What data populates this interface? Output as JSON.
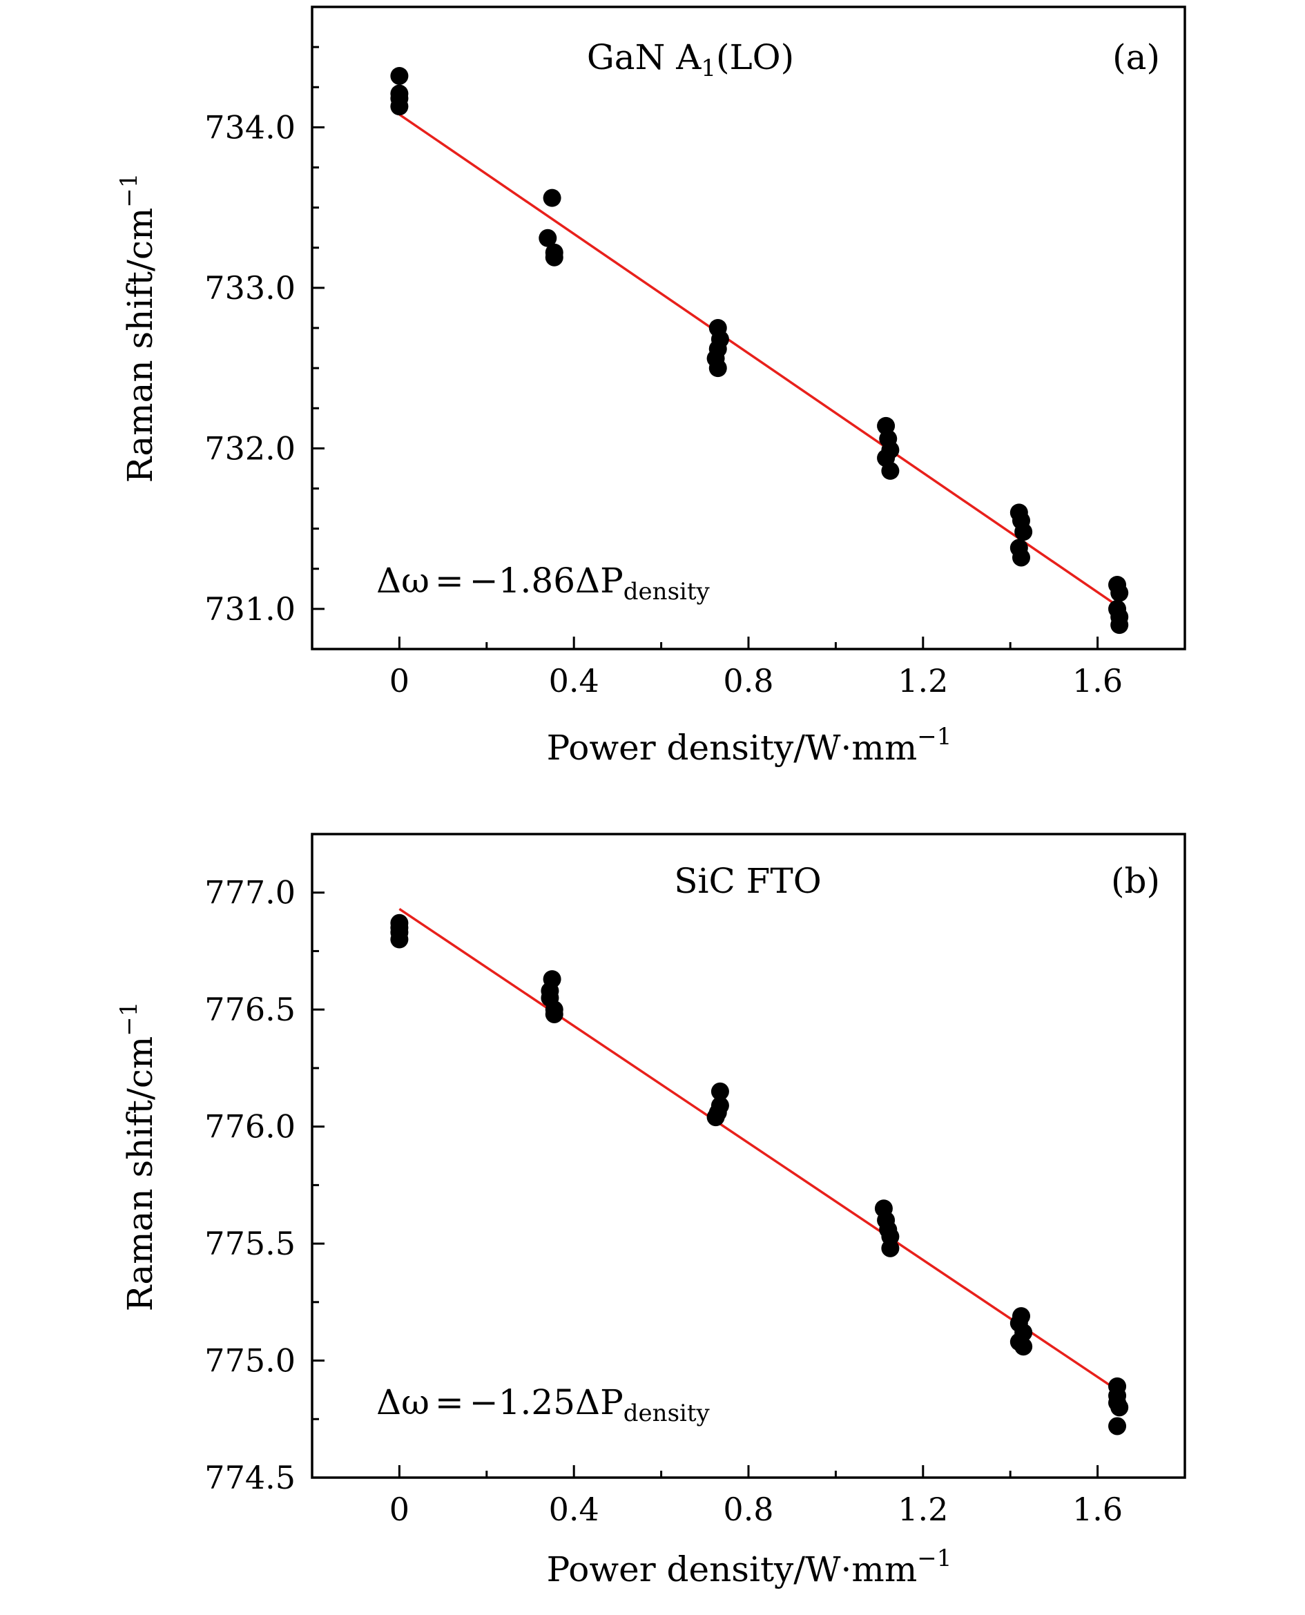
{
  "chart_data": [
    {
      "type": "scatter",
      "panel_tag": "(a)",
      "title": {
        "main": "GaN A",
        "sub": "1",
        "tail": "(LO)"
      },
      "xlabel": {
        "main": "Power density/W·mm",
        "sup": "−1"
      },
      "ylabel": {
        "main": "Raman shift/cm",
        "sup": "−1"
      },
      "xlim": [
        -0.2,
        1.8
      ],
      "ylim": [
        730.75,
        734.75
      ],
      "x_ticks": [
        {
          "value": 0,
          "label": "0"
        },
        {
          "value": 0.4,
          "label": "0.4"
        },
        {
          "value": 0.8,
          "label": "0.8"
        },
        {
          "value": 1.2,
          "label": "1.2"
        },
        {
          "value": 1.6,
          "label": "1.6"
        }
      ],
      "x_minor_ticks": [
        -0.2,
        0.2,
        0.6,
        1.0,
        1.4,
        1.8
      ],
      "y_ticks": [
        {
          "value": 731.0,
          "label": "731.0"
        },
        {
          "value": 732.0,
          "label": "732.0"
        },
        {
          "value": 733.0,
          "label": "733.0"
        },
        {
          "value": 734.0,
          "label": "734.0"
        }
      ],
      "y_minor_ticks": [
        731.25,
        731.5,
        731.75,
        732.25,
        732.5,
        732.75,
        733.25,
        733.5,
        733.75,
        734.25,
        734.5
      ],
      "points": [
        {
          "x": 0.0,
          "y": 734.32
        },
        {
          "x": 0.0,
          "y": 734.21
        },
        {
          "x": 0.0,
          "y": 734.18
        },
        {
          "x": 0.0,
          "y": 734.13
        },
        {
          "x": 0.35,
          "y": 733.56
        },
        {
          "x": 0.34,
          "y": 733.31
        },
        {
          "x": 0.355,
          "y": 733.22
        },
        {
          "x": 0.355,
          "y": 733.19
        },
        {
          "x": 0.73,
          "y": 732.75
        },
        {
          "x": 0.735,
          "y": 732.68
        },
        {
          "x": 0.73,
          "y": 732.62
        },
        {
          "x": 0.725,
          "y": 732.56
        },
        {
          "x": 0.73,
          "y": 732.5
        },
        {
          "x": 1.115,
          "y": 732.14
        },
        {
          "x": 1.12,
          "y": 732.06
        },
        {
          "x": 1.125,
          "y": 731.99
        },
        {
          "x": 1.115,
          "y": 731.94
        },
        {
          "x": 1.125,
          "y": 731.86
        },
        {
          "x": 1.42,
          "y": 731.6
        },
        {
          "x": 1.425,
          "y": 731.55
        },
        {
          "x": 1.43,
          "y": 731.48
        },
        {
          "x": 1.42,
          "y": 731.38
        },
        {
          "x": 1.425,
          "y": 731.32
        },
        {
          "x": 1.645,
          "y": 731.15
        },
        {
          "x": 1.65,
          "y": 731.1
        },
        {
          "x": 1.645,
          "y": 731.0
        },
        {
          "x": 1.65,
          "y": 730.95
        },
        {
          "x": 1.65,
          "y": 730.9
        }
      ],
      "fit": {
        "x_start": 0.0,
        "x_end": 1.65,
        "slope": -1.86,
        "intercept": 734.08
      },
      "equation": {
        "lhs": "Δω",
        "rhs": "−1.86ΔP",
        "sub": "density"
      }
    },
    {
      "type": "scatter",
      "panel_tag": "(b)",
      "title": {
        "main": "SiC FTO",
        "sub": "",
        "tail": ""
      },
      "xlabel": {
        "main": "Power density/W·mm",
        "sup": "−1"
      },
      "ylabel": {
        "main": "Raman shift/cm",
        "sup": "−1"
      },
      "xlim": [
        -0.2,
        1.8
      ],
      "ylim": [
        774.5,
        777.25
      ],
      "x_ticks": [
        {
          "value": 0,
          "label": "0"
        },
        {
          "value": 0.4,
          "label": "0.4"
        },
        {
          "value": 0.8,
          "label": "0.8"
        },
        {
          "value": 1.2,
          "label": "1.2"
        },
        {
          "value": 1.6,
          "label": "1.6"
        }
      ],
      "x_minor_ticks": [
        -0.2,
        0.2,
        0.6,
        1.0,
        1.4,
        1.8
      ],
      "y_ticks": [
        {
          "value": 774.5,
          "label": "774.5"
        },
        {
          "value": 775.0,
          "label": "775.0"
        },
        {
          "value": 775.5,
          "label": "775.5"
        },
        {
          "value": 776.0,
          "label": "776.0"
        },
        {
          "value": 776.5,
          "label": "776.5"
        },
        {
          "value": 777.0,
          "label": "777.0"
        }
      ],
      "y_minor_ticks": [
        774.75,
        775.25,
        775.75,
        776.25,
        776.75
      ],
      "points": [
        {
          "x": 0.0,
          "y": 776.87
        },
        {
          "x": 0.0,
          "y": 776.85
        },
        {
          "x": 0.0,
          "y": 776.83
        },
        {
          "x": 0.0,
          "y": 776.8
        },
        {
          "x": 0.35,
          "y": 776.63
        },
        {
          "x": 0.345,
          "y": 776.58
        },
        {
          "x": 0.345,
          "y": 776.55
        },
        {
          "x": 0.355,
          "y": 776.5
        },
        {
          "x": 0.355,
          "y": 776.48
        },
        {
          "x": 0.735,
          "y": 776.15
        },
        {
          "x": 0.735,
          "y": 776.09
        },
        {
          "x": 0.73,
          "y": 776.06
        },
        {
          "x": 0.725,
          "y": 776.04
        },
        {
          "x": 1.11,
          "y": 775.65
        },
        {
          "x": 1.115,
          "y": 775.6
        },
        {
          "x": 1.12,
          "y": 775.56
        },
        {
          "x": 1.125,
          "y": 775.53
        },
        {
          "x": 1.125,
          "y": 775.48
        },
        {
          "x": 1.425,
          "y": 775.19
        },
        {
          "x": 1.42,
          "y": 775.16
        },
        {
          "x": 1.43,
          "y": 775.12
        },
        {
          "x": 1.42,
          "y": 775.08
        },
        {
          "x": 1.43,
          "y": 775.06
        },
        {
          "x": 1.645,
          "y": 774.89
        },
        {
          "x": 1.645,
          "y": 774.85
        },
        {
          "x": 1.645,
          "y": 774.82
        },
        {
          "x": 1.65,
          "y": 774.8
        },
        {
          "x": 1.645,
          "y": 774.72
        }
      ],
      "fit": {
        "x_start": 0.0,
        "x_end": 1.65,
        "slope": -1.25,
        "intercept": 776.93
      },
      "equation": {
        "lhs": "Δω",
        "rhs": "−1.25ΔP",
        "sub": "density"
      }
    }
  ],
  "colors": {
    "points": "#000000",
    "fit_line": "#e8201b",
    "frame": "#000000",
    "background": "#ffffff"
  }
}
